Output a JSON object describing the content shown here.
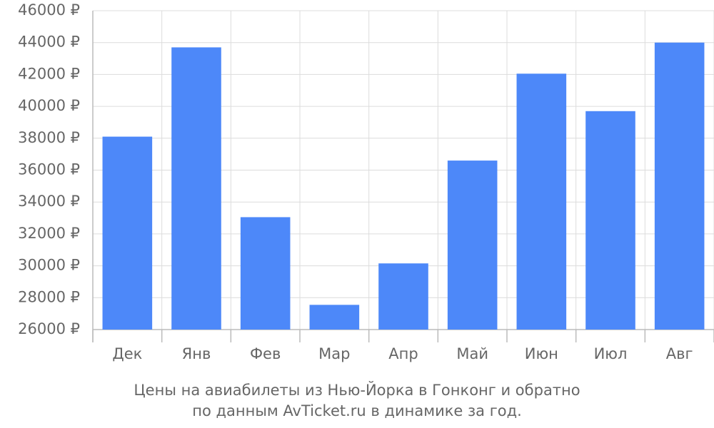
{
  "chart_data": {
    "type": "bar",
    "caption": [
      "Цены на авиабилеты из Нью-Йорка в Гонконг и обратно",
      "по данным AvTicket.ru в динамике за год."
    ],
    "categories": [
      "Дек",
      "Янв",
      "Фев",
      "Мар",
      "Апр",
      "Май",
      "Июн",
      "Июл",
      "Авг"
    ],
    "values": [
      38100,
      43700,
      33050,
      27550,
      30150,
      36600,
      42050,
      39700,
      44000
    ],
    "color": "#4d88f9",
    "ylim": [
      26000,
      46000
    ],
    "yticks": [
      {
        "value": 26000,
        "label": "26000 ₽"
      },
      {
        "value": 28000,
        "label": "28000 ₽"
      },
      {
        "value": 30000,
        "label": "30000 ₽"
      },
      {
        "value": 32000,
        "label": "32000 ₽"
      },
      {
        "value": 34000,
        "label": "34000 ₽"
      },
      {
        "value": 36000,
        "label": "36000 ₽"
      },
      {
        "value": 38000,
        "label": "38000 ₽"
      },
      {
        "value": 40000,
        "label": "40000 ₽"
      },
      {
        "value": 42000,
        "label": "42000 ₽"
      },
      {
        "value": 44000,
        "label": "44000 ₽"
      },
      {
        "value": 46000,
        "label": "46000 ₽"
      }
    ],
    "grid": true
  }
}
